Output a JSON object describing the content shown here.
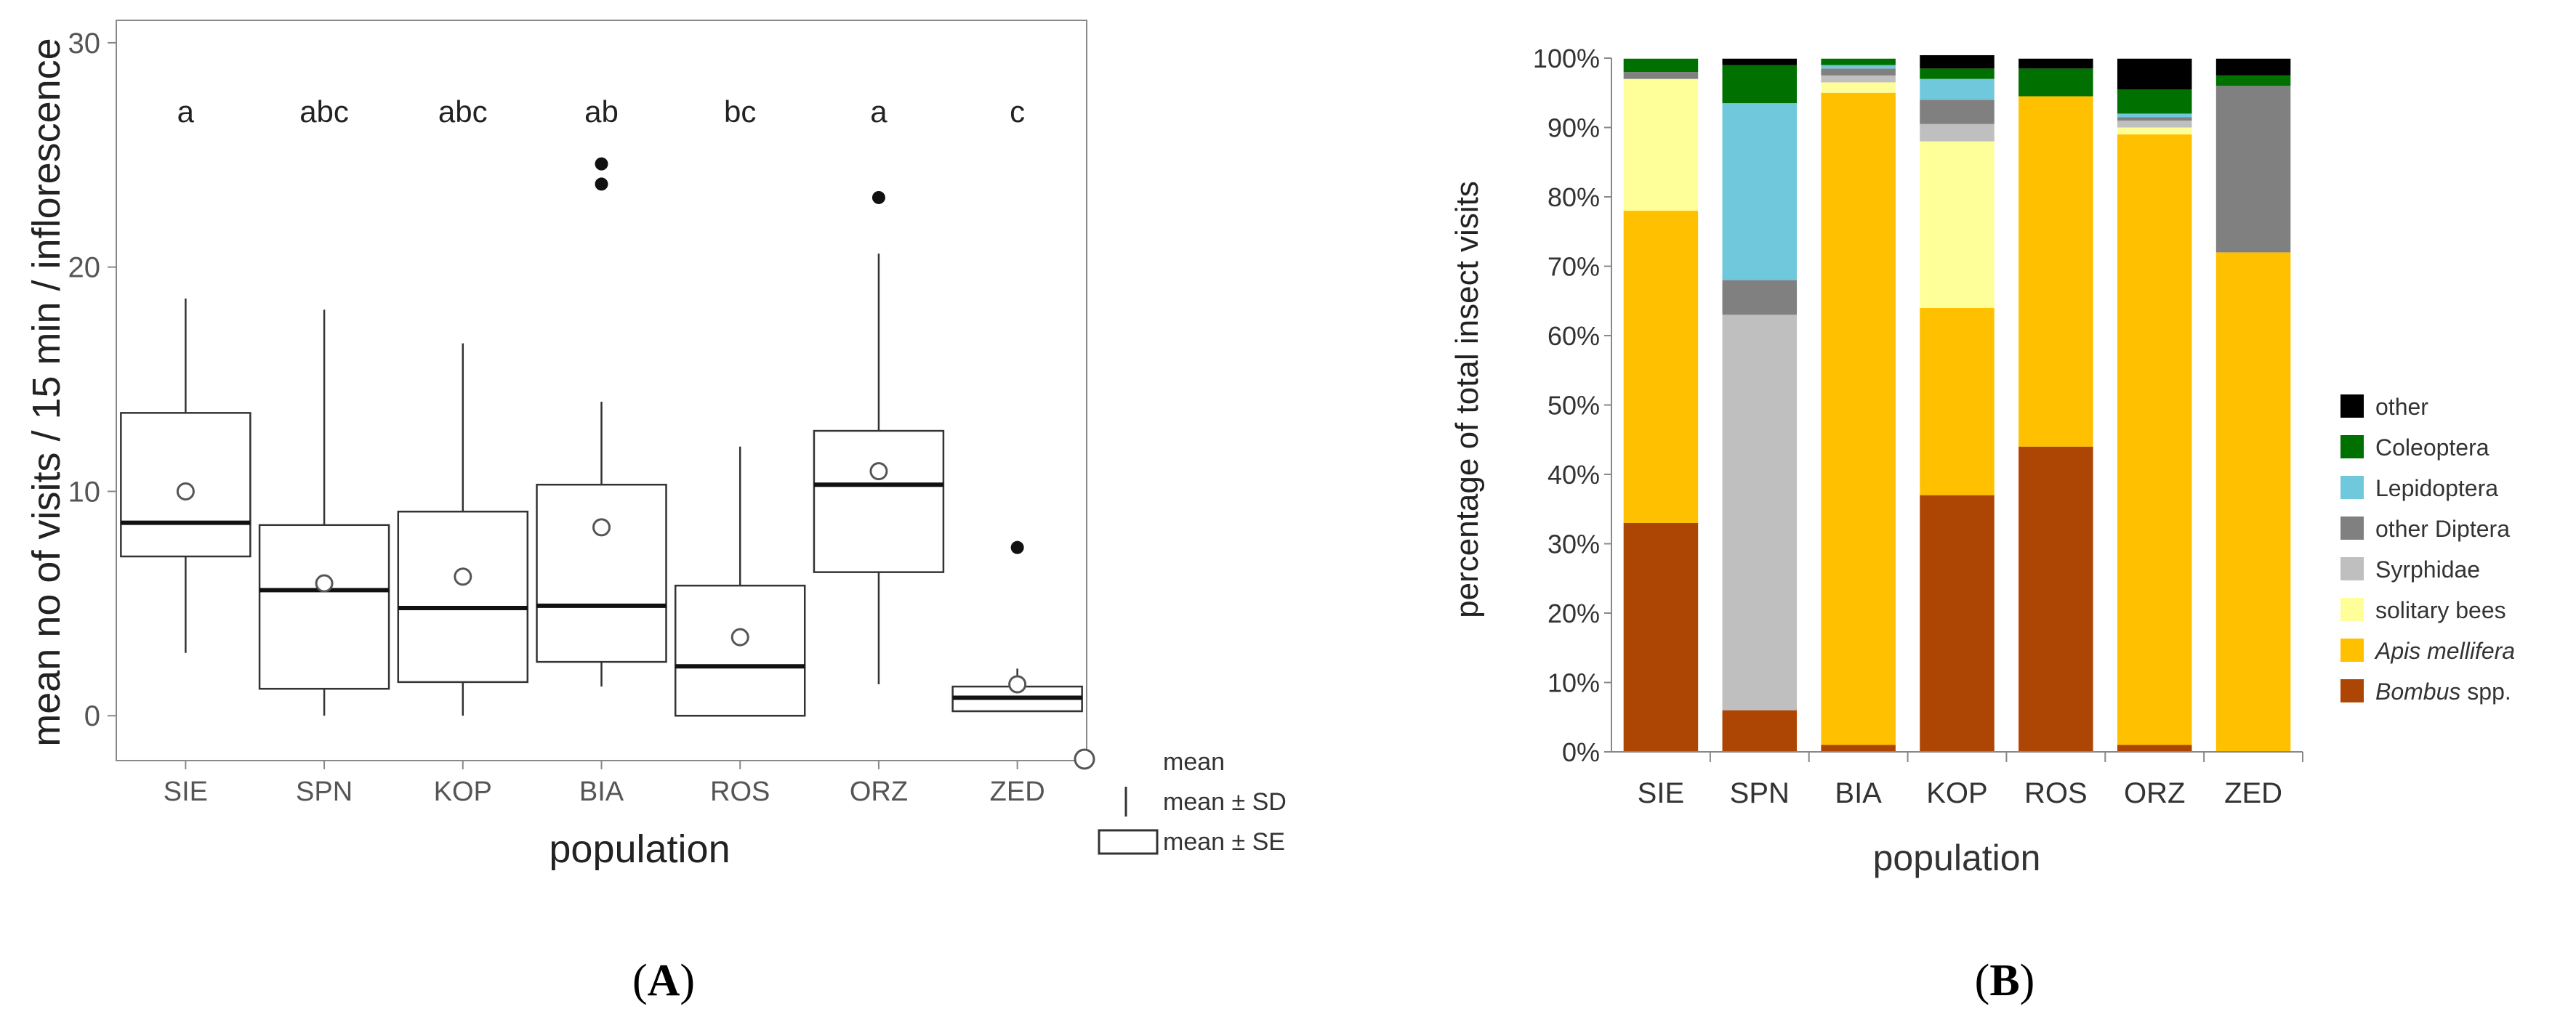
{
  "panels": {
    "a_label": "A",
    "b_label": "B"
  },
  "chart_data": [
    {
      "panel": "A",
      "type": "box",
      "title": "",
      "xlabel": "population",
      "ylabel": "mean no of visits / 15 min / inflorescence",
      "ylim": [
        -2,
        31
      ],
      "yticks": [
        0,
        10,
        20,
        30
      ],
      "grid": false,
      "categories": [
        "SIE",
        "SPN",
        "KOP",
        "BIA",
        "ROS",
        "ORZ",
        "ZED"
      ],
      "letters": [
        "a",
        "abc",
        "abc",
        "ab",
        "bc",
        "a",
        "c"
      ],
      "boxes": [
        {
          "whisker_low": 2.8,
          "box_low": 7.1,
          "median": 8.6,
          "box_high": 13.5,
          "whisker_high": 18.6,
          "mean": 10.0,
          "outliers": []
        },
        {
          "whisker_low": 0.0,
          "box_low": 1.2,
          "median": 5.6,
          "box_high": 8.5,
          "whisker_high": 18.1,
          "mean": 5.9,
          "outliers": []
        },
        {
          "whisker_low": 0.0,
          "box_low": 1.5,
          "median": 4.8,
          "box_high": 9.1,
          "whisker_high": 16.6,
          "mean": 6.2,
          "outliers": []
        },
        {
          "whisker_low": 1.3,
          "box_low": 2.4,
          "median": 4.9,
          "box_high": 10.3,
          "whisker_high": 14.0,
          "mean": 8.4,
          "outliers": [
            23.7,
            24.6
          ]
        },
        {
          "whisker_low": 0.0,
          "box_low": 0.0,
          "median": 2.2,
          "box_high": 5.8,
          "whisker_high": 12.0,
          "mean": 3.5,
          "outliers": []
        },
        {
          "whisker_low": 1.4,
          "box_low": 6.4,
          "median": 10.3,
          "box_high": 12.7,
          "whisker_high": 20.6,
          "mean": 10.9,
          "outliers": [
            23.1
          ]
        },
        {
          "whisker_low": 0.2,
          "box_low": 0.2,
          "median": 0.8,
          "box_high": 1.3,
          "whisker_high": 2.1,
          "mean": 1.4,
          "outliers": [
            7.5
          ]
        }
      ],
      "legend": {
        "position": "bottom-right",
        "entries": [
          {
            "symbol": "circle",
            "label": "mean"
          },
          {
            "symbol": "line",
            "label": "mean ± SD"
          },
          {
            "symbol": "box",
            "label": "mean ± SE"
          }
        ]
      }
    },
    {
      "panel": "B",
      "type": "bar",
      "stacked": true,
      "title": "",
      "xlabel": "population",
      "ylabel": "percentage of total insect visits",
      "ylim": [
        0,
        100
      ],
      "yticks": [
        0,
        10,
        20,
        30,
        40,
        50,
        60,
        70,
        80,
        90,
        100
      ],
      "ytick_suffix": "%",
      "categories": [
        "SIE",
        "SPN",
        "BIA",
        "KOP",
        "ROS",
        "ORZ",
        "ZED"
      ],
      "series": [
        {
          "name": "Bombus spp.",
          "name_italic": "Bombus",
          "name_rest": " spp.",
          "color": "#ad4504",
          "values": [
            33,
            6,
            1,
            37,
            44,
            1,
            0
          ]
        },
        {
          "name": "Apis mellifera",
          "name_italic": "Apis mellifera",
          "name_rest": "",
          "color": "#ffc000",
          "values": [
            45,
            0,
            94,
            27,
            50.5,
            88,
            72
          ]
        },
        {
          "name": "solitary bees",
          "color": "#ffff99",
          "values": [
            19,
            0,
            1.5,
            24,
            0,
            1,
            0
          ]
        },
        {
          "name": "Syrphidae",
          "color": "#bfbfbf",
          "values": [
            0,
            57,
            1,
            2.5,
            0,
            1,
            0
          ]
        },
        {
          "name": "other Diptera",
          "color": "#808080",
          "values": [
            1,
            5,
            1,
            3.5,
            0,
            0.5,
            24
          ]
        },
        {
          "name": "Lepidoptera",
          "color": "#70c8dc",
          "values": [
            0,
            25.5,
            0.5,
            3,
            0,
            0.5,
            0
          ]
        },
        {
          "name": "Coleoptera",
          "color": "#007000",
          "values": [
            2,
            5.5,
            1,
            1.5,
            4,
            3.5,
            1.5
          ]
        },
        {
          "name": "other",
          "color": "#000000",
          "values": [
            0,
            1,
            0,
            2,
            1.5,
            4.5,
            2.5
          ]
        }
      ],
      "legend_order": [
        "other",
        "Coleoptera",
        "Lepidoptera",
        "other Diptera",
        "Syrphidae",
        "solitary bees",
        "Apis mellifera",
        "Bombus spp."
      ],
      "legend_position": "right"
    }
  ]
}
